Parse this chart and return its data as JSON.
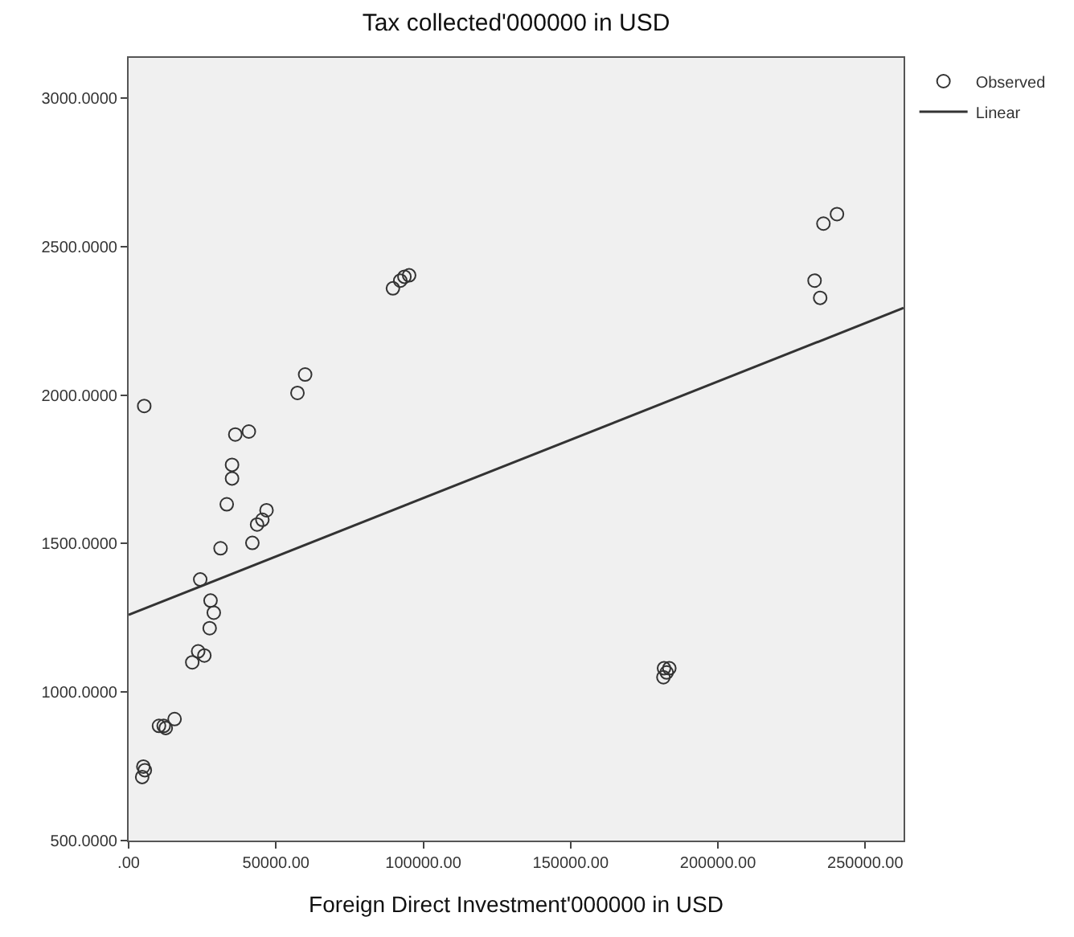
{
  "chart_data": {
    "type": "scatter",
    "title": "Tax collected'000000 in USD",
    "xlabel": "Foreign Direct Investment'000000 in USD",
    "xlim": [
      0,
      263000
    ],
    "ylim": [
      500,
      3135
    ],
    "xticks": [
      {
        "value": 0,
        "label": ".00"
      },
      {
        "value": 50000,
        "label": "50000.00"
      },
      {
        "value": 100000,
        "label": "100000.00"
      },
      {
        "value": 150000,
        "label": "150000.00"
      },
      {
        "value": 200000,
        "label": "200000.00"
      },
      {
        "value": 250000,
        "label": "250000.00"
      }
    ],
    "yticks": [
      {
        "value": 500,
        "label": "500.0000"
      },
      {
        "value": 1000,
        "label": "1000.0000"
      },
      {
        "value": 1500,
        "label": "1500.0000"
      },
      {
        "value": 2000,
        "label": "2000.0000"
      },
      {
        "value": 2500,
        "label": "2500.0000"
      },
      {
        "value": 3000,
        "label": "3000.0000"
      }
    ],
    "grid": false,
    "legend": "top right",
    "series": [
      {
        "name": "Observed",
        "marker": "circle",
        "color": "#333333",
        "x": [
          5300,
          36200,
          40800,
          57300,
          59900,
          89700,
          92200,
          93600,
          95200,
          232800,
          234700,
          235800,
          240400,
          35100,
          35100,
          33300,
          31200,
          42000,
          43600,
          45400,
          46800,
          24300,
          27800,
          28900,
          27500,
          23600,
          25700,
          21600,
          15600,
          11900,
          10300,
          12600,
          5000,
          5500,
          4600,
          181700,
          183500,
          181500,
          182600
        ],
        "values": [
          1963,
          1867,
          1877,
          2007,
          2069,
          2359,
          2385,
          2398,
          2403,
          2385,
          2327,
          2577,
          2609,
          1765,
          1719,
          1632,
          1484,
          1502,
          1564,
          1580,
          1612,
          1379,
          1308,
          1267,
          1215,
          1137,
          1123,
          1100,
          909,
          886,
          886,
          879,
          749,
          737,
          714,
          1080,
          1080,
          1050,
          1066
        ]
      },
      {
        "name": "Linear",
        "type": "line",
        "marker": "none",
        "color": "#333333",
        "x": [
          0,
          263000
        ],
        "values": [
          1260,
          2293
        ]
      }
    ]
  }
}
